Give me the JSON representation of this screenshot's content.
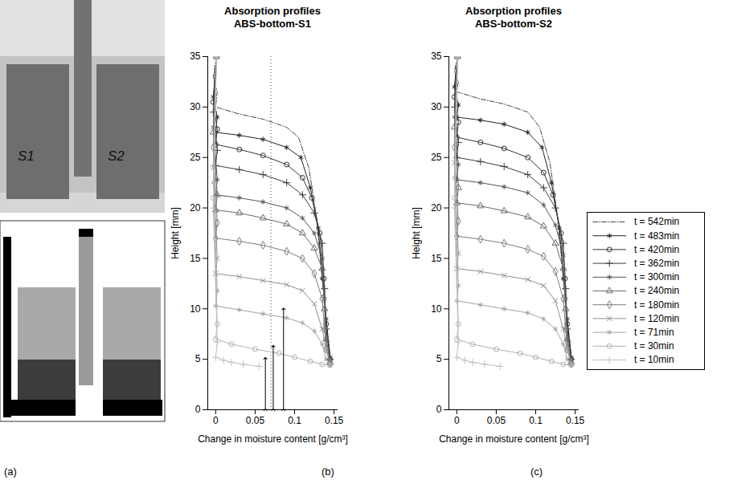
{
  "chart_data": [
    {
      "type": "line",
      "panel_label": "(b)",
      "title": "Absorption profiles",
      "subtitle": "ABS-bottom-S1",
      "x_label": "Change in moisture content [g/cm³]",
      "y_label": "Height [mm]",
      "xlim": [
        -0.01,
        0.155
      ],
      "xticks": [
        0,
        0.05,
        0.1,
        0.15
      ],
      "ylim": [
        0,
        35
      ],
      "yticks": [
        0,
        5,
        10,
        15,
        20,
        25,
        30,
        35
      ],
      "reference_x": 0.07,
      "arrows": [
        {
          "x": 0.063,
          "y1": 0,
          "y2": 5.1
        },
        {
          "x": 0.073,
          "y1": 0,
          "y2": 6.3
        },
        {
          "x": 0.086,
          "y1": 0,
          "y2": 10
        }
      ],
      "series": [
        {
          "name": "t = 542min",
          "color": "#444444",
          "marker": "none",
          "line_style": "dashdot",
          "x": [
            0.001,
            -0.003,
            0.002,
            0,
            0.03,
            0.06,
            0.09,
            0.105,
            0.118,
            0.128,
            0.134,
            0.14,
            0.145
          ],
          "y": [
            35,
            33,
            31.5,
            30,
            29.3,
            28.8,
            28,
            27,
            24,
            19,
            14,
            9,
            5.3
          ]
        },
        {
          "name": "t = 483min",
          "color": "#222222",
          "marker": "asterisk",
          "line_style": "solid",
          "x": [
            0.001,
            -0.003,
            0.002,
            0,
            0.03,
            0.06,
            0.09,
            0.108,
            0.12,
            0.13,
            0.135,
            0.14,
            0.145
          ],
          "y": [
            35,
            31,
            29,
            27.5,
            27.2,
            26.8,
            26,
            25,
            22,
            18,
            13,
            9,
            5.2
          ]
        },
        {
          "name": "t = 420min",
          "color": "#333333",
          "marker": "circle",
          "line_style": "solid",
          "x": [
            0.001,
            -0.003,
            0.002,
            0,
            0.03,
            0.06,
            0.09,
            0.11,
            0.122,
            0.132,
            0.137,
            0.14,
            0.145
          ],
          "y": [
            35,
            30.5,
            27.8,
            26.3,
            25.8,
            25.2,
            24.3,
            23,
            21,
            17.5,
            13,
            8.5,
            5
          ]
        },
        {
          "name": "t = 362min",
          "color": "#3d3d3d",
          "marker": "plus",
          "line_style": "solid",
          "x": [
            0.001,
            -0.003,
            0.002,
            0,
            0.03,
            0.06,
            0.09,
            0.11,
            0.125,
            0.135,
            0.138,
            0.14,
            0.145
          ],
          "y": [
            35,
            29.5,
            25.7,
            24.2,
            23.8,
            23.3,
            22.5,
            21.3,
            19.5,
            16.5,
            12,
            8,
            5
          ]
        },
        {
          "name": "t = 300min",
          "color": "#555555",
          "marker": "asterisk",
          "line_style": "solid",
          "x": [
            0.001,
            -0.003,
            0.002,
            0,
            0.03,
            0.06,
            0.09,
            0.11,
            0.125,
            0.135,
            0.138,
            0.14,
            0.145
          ],
          "y": [
            35,
            28,
            22.8,
            21.3,
            21,
            20.6,
            20,
            19,
            17.5,
            15,
            11,
            7,
            4.8
          ]
        },
        {
          "name": "t = 240min",
          "color": "#6a6a6a",
          "marker": "triangle",
          "line_style": "solid",
          "x": [
            0.001,
            -0.003,
            0.002,
            0,
            0.03,
            0.06,
            0.09,
            0.11,
            0.125,
            0.135,
            0.138,
            0.14,
            0.145
          ],
          "y": [
            35,
            27.5,
            21.3,
            19.8,
            19.5,
            19,
            18.4,
            17.5,
            16,
            14,
            10,
            7,
            4.7
          ]
        },
        {
          "name": "t = 180min",
          "color": "#7d7d7d",
          "marker": "diamond",
          "line_style": "solid",
          "x": [
            0.001,
            -0.003,
            0.002,
            0,
            0.03,
            0.06,
            0.09,
            0.11,
            0.125,
            0.135,
            0.138,
            0.14,
            0.145
          ],
          "y": [
            35,
            26,
            18.5,
            17,
            16.7,
            16.3,
            15.7,
            15,
            13.5,
            11,
            8,
            6,
            4.6
          ]
        },
        {
          "name": "t = 120min",
          "color": "#8f8f8f",
          "marker": "times",
          "line_style": "solid",
          "x": [
            0.001,
            -0.003,
            0.002,
            0,
            0.03,
            0.06,
            0.09,
            0.11,
            0.125,
            0.135,
            0.14,
            0.145
          ],
          "y": [
            35,
            24,
            15,
            13.5,
            13.2,
            12.8,
            12.4,
            11.8,
            10.5,
            8,
            6,
            4.6
          ]
        },
        {
          "name": "t = 71min",
          "color": "#a2a2a2",
          "marker": "asterisk",
          "line_style": "solid",
          "x": [
            0.001,
            -0.003,
            0.002,
            0,
            0.03,
            0.06,
            0.09,
            0.11,
            0.125,
            0.135,
            0.14,
            0.145
          ],
          "y": [
            35,
            22.5,
            11.8,
            10.3,
            9.9,
            9.5,
            9.1,
            8.6,
            7.8,
            6.5,
            5,
            4.5
          ]
        },
        {
          "name": "t = 30min",
          "color": "#b2b2b2",
          "marker": "circle",
          "line_style": "solid",
          "x": [
            0.001,
            -0.003,
            0.002,
            0,
            0.02,
            0.05,
            0.08,
            0.1,
            0.12,
            0.135,
            0.145
          ],
          "y": [
            35,
            21,
            8.5,
            7,
            6.5,
            6,
            5.6,
            5.2,
            4.8,
            4.5,
            4.4
          ]
        },
        {
          "name": "t = 10min",
          "color": "#c0c0c0",
          "marker": "plus",
          "line_style": "solid",
          "x": [
            0.001,
            -0.003,
            0.002,
            0,
            0.01,
            0.02,
            0.035,
            0.055
          ],
          "y": [
            35,
            20,
            6.7,
            5.2,
            4.9,
            4.7,
            4.5,
            4.3
          ]
        }
      ]
    },
    {
      "type": "line",
      "panel_label": "(c)",
      "title": "Absorption profiles",
      "subtitle": "ABS-bottom-S2",
      "x_label": "Change in moisture content [g/cm³]",
      "y_label": "Height [mm]",
      "xlim": [
        -0.01,
        0.155
      ],
      "xticks": [
        0,
        0.05,
        0.1,
        0.15
      ],
      "ylim": [
        0,
        35
      ],
      "yticks": [
        0,
        5,
        10,
        15,
        20,
        25,
        30,
        35
      ],
      "legend": "right",
      "series": [
        {
          "name": "t = 542min",
          "color": "#444444",
          "marker": "none",
          "line_style": "dashdot",
          "x": [
            0.001,
            -0.003,
            0.002,
            0,
            0.03,
            0.06,
            0.09,
            0.105,
            0.118,
            0.128,
            0.134,
            0.14,
            0.145
          ],
          "y": [
            35,
            33.5,
            32.5,
            31.5,
            30.8,
            30.3,
            29.5,
            28,
            24.5,
            19,
            14,
            9,
            5.3
          ]
        },
        {
          "name": "t = 483min",
          "color": "#222222",
          "marker": "asterisk",
          "line_style": "solid",
          "x": [
            0.001,
            -0.003,
            0.002,
            0,
            0.03,
            0.06,
            0.09,
            0.108,
            0.12,
            0.13,
            0.135,
            0.14,
            0.145
          ],
          "y": [
            35,
            32,
            30.2,
            29,
            28.7,
            28.3,
            27.5,
            26,
            22.5,
            18,
            13,
            9,
            5.2
          ]
        },
        {
          "name": "t = 420min",
          "color": "#333333",
          "marker": "circle",
          "line_style": "solid",
          "x": [
            0.001,
            -0.003,
            0.002,
            0,
            0.03,
            0.06,
            0.09,
            0.11,
            0.122,
            0.132,
            0.137,
            0.14,
            0.145
          ],
          "y": [
            35,
            31,
            28.5,
            27,
            26.5,
            25.9,
            25,
            23.5,
            21.3,
            17.5,
            13,
            8.5,
            5
          ]
        },
        {
          "name": "t = 362min",
          "color": "#3d3d3d",
          "marker": "plus",
          "line_style": "solid",
          "x": [
            0.001,
            -0.003,
            0.002,
            0,
            0.03,
            0.06,
            0.09,
            0.11,
            0.125,
            0.135,
            0.138,
            0.14,
            0.145
          ],
          "y": [
            35,
            30,
            26.5,
            25,
            24.6,
            24.1,
            23.3,
            22,
            20,
            16.5,
            12,
            8,
            5
          ]
        },
        {
          "name": "t = 300min",
          "color": "#555555",
          "marker": "asterisk",
          "line_style": "solid",
          "x": [
            0.001,
            -0.003,
            0.002,
            0,
            0.03,
            0.06,
            0.09,
            0.11,
            0.125,
            0.135,
            0.138,
            0.14,
            0.145
          ],
          "y": [
            35,
            29,
            24.3,
            22.8,
            22.5,
            22.1,
            21.5,
            20.3,
            18.3,
            15.3,
            11,
            7,
            4.8
          ]
        },
        {
          "name": "t = 240min",
          "color": "#6a6a6a",
          "marker": "triangle",
          "line_style": "solid",
          "x": [
            0.001,
            -0.003,
            0.002,
            0,
            0.03,
            0.06,
            0.09,
            0.11,
            0.125,
            0.135,
            0.138,
            0.14,
            0.145
          ],
          "y": [
            35,
            28,
            22,
            20.5,
            20.2,
            19.7,
            19.1,
            18.2,
            16.5,
            14,
            10,
            7,
            4.7
          ]
        },
        {
          "name": "t = 180min",
          "color": "#7d7d7d",
          "marker": "diamond",
          "line_style": "solid",
          "x": [
            0.001,
            -0.003,
            0.002,
            0,
            0.03,
            0.06,
            0.09,
            0.11,
            0.125,
            0.135,
            0.138,
            0.14,
            0.145
          ],
          "y": [
            35,
            26,
            18.7,
            17.2,
            16.9,
            16.5,
            15.9,
            15.2,
            13.7,
            11,
            8,
            6,
            4.6
          ]
        },
        {
          "name": "t = 120min",
          "color": "#8f8f8f",
          "marker": "times",
          "line_style": "solid",
          "x": [
            0.001,
            -0.003,
            0.002,
            0,
            0.03,
            0.06,
            0.09,
            0.11,
            0.125,
            0.135,
            0.14,
            0.145
          ],
          "y": [
            35,
            24.5,
            15.5,
            14,
            13.7,
            13.3,
            12.9,
            12.3,
            10.8,
            8,
            6,
            4.6
          ]
        },
        {
          "name": "t = 71min",
          "color": "#a2a2a2",
          "marker": "asterisk",
          "line_style": "solid",
          "x": [
            0.001,
            -0.003,
            0.002,
            0,
            0.03,
            0.06,
            0.09,
            0.11,
            0.125,
            0.135,
            0.14,
            0.145
          ],
          "y": [
            35,
            23,
            12.3,
            10.8,
            10.4,
            10,
            9.6,
            9,
            8,
            6.5,
            5,
            4.5
          ]
        },
        {
          "name": "t = 30min",
          "color": "#b2b2b2",
          "marker": "circle",
          "line_style": "solid",
          "x": [
            0.001,
            -0.003,
            0.002,
            0,
            0.02,
            0.05,
            0.08,
            0.1,
            0.12,
            0.135,
            0.145
          ],
          "y": [
            35,
            21,
            8.5,
            7,
            6.5,
            6,
            5.6,
            5.2,
            4.8,
            4.5,
            4.4
          ]
        },
        {
          "name": "t = 10min",
          "color": "#c0c0c0",
          "marker": "plus",
          "line_style": "solid",
          "x": [
            0.001,
            -0.003,
            0.002,
            0,
            0.01,
            0.02,
            0.035,
            0.055
          ],
          "y": [
            35,
            20,
            6.7,
            5.2,
            4.9,
            4.7,
            4.5,
            4.3
          ]
        }
      ]
    }
  ],
  "image_panel": {
    "panel_label": "(a)",
    "labels": [
      "S1",
      "S2"
    ]
  }
}
